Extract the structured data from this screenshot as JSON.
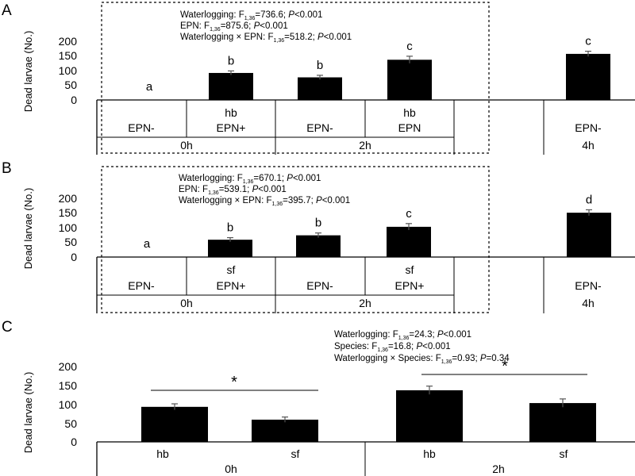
{
  "figure": {
    "panels": [
      {
        "id": "A",
        "ylabel": "Dead larvae (No.)",
        "yticks": [
          "0",
          "50",
          "100",
          "150",
          "200"
        ],
        "stats": [
          {
            "pre": "Waterlogging: F",
            "sub": "1,36",
            "post": "=736.6; ",
            "p": "P",
            "tail": "<0.001"
          },
          {
            "pre": "EPN: F",
            "sub": "1,36",
            "post": "=875.6; ",
            "p": "P",
            "tail": "<0.001"
          },
          {
            "pre": "Waterlogging × EPN: F",
            "sub": "1,36",
            "post": "=518.2; ",
            "p": "P",
            "tail": "<0.001"
          }
        ],
        "row1": [
          "",
          "hb",
          "",
          "hb",
          "",
          ""
        ],
        "row2": [
          "EPN-",
          "EPN+",
          "EPN-",
          "EPN",
          "",
          "EPN-"
        ],
        "row3": [
          "0h",
          "2h",
          "4h"
        ]
      },
      {
        "id": "B",
        "ylabel": "Dead larvae (No.)",
        "yticks": [
          "0",
          "50",
          "100",
          "150",
          "200"
        ],
        "stats": [
          {
            "pre": "Waterlogging: F",
            "sub": "1,36",
            "post": "=670.1; ",
            "p": "P",
            "tail": "<0.001"
          },
          {
            "pre": "EPN: F",
            "sub": "1,36",
            "post": "=539.1; ",
            "p": "P",
            "tail": "<0.001"
          },
          {
            "pre": "Waterlogging × EPN: F",
            "sub": "1,36",
            "post": "=395.7; ",
            "p": "P",
            "tail": "<0.001"
          }
        ],
        "row1": [
          "",
          "sf",
          "",
          "sf",
          "",
          ""
        ],
        "row2": [
          "EPN-",
          "EPN+",
          "EPN-",
          "EPN+",
          "",
          "EPN-"
        ],
        "row3": [
          "0h",
          "2h",
          "4h"
        ]
      },
      {
        "id": "C",
        "ylabel": "Dead larvae (No.)",
        "yticks": [
          "0",
          "50",
          "100",
          "150",
          "200"
        ],
        "stats": [
          {
            "pre": "Waterlogging: F",
            "sub": "1,36",
            "post": "=24.3; ",
            "p": "P",
            "tail": "<0.001"
          },
          {
            "pre": "Species: F",
            "sub": "1,36",
            "post": "=16.8; ",
            "p": "P",
            "tail": "<0.001"
          },
          {
            "pre": "Waterlogging × Species: F",
            "sub": "1,36",
            "post": "=0.93; ",
            "p": "P",
            "tail": "=0.34"
          }
        ],
        "row1": [
          "hb",
          "sf",
          "hb",
          "sf"
        ],
        "row2": [
          "0h",
          "2h"
        ],
        "significance": [
          "*",
          "*"
        ]
      }
    ]
  },
  "chart_data": [
    {
      "type": "bar",
      "panel": "A",
      "ylabel": "Dead larvae (No.)",
      "ylim": [
        0,
        200
      ],
      "yticks": [
        0,
        50,
        100,
        150,
        200
      ],
      "categories": [
        "0h EPN-",
        "0h hb EPN+",
        "2h EPN-",
        "2h hb EPN",
        "4h EPN-"
      ],
      "values": [
        0,
        92,
        77,
        137,
        157
      ],
      "errors": [
        0,
        7,
        7,
        12,
        9
      ],
      "letters": [
        "a",
        "b",
        "b",
        "c",
        "c"
      ]
    },
    {
      "type": "bar",
      "panel": "B",
      "ylabel": "Dead larvae (No.)",
      "ylim": [
        0,
        200
      ],
      "yticks": [
        0,
        50,
        100,
        150,
        200
      ],
      "categories": [
        "0h EPN-",
        "0h sf EPN+",
        "2h EPN-",
        "2h sf EPN+",
        "4h EPN-"
      ],
      "values": [
        0,
        59,
        74,
        103,
        151
      ],
      "errors": [
        0,
        7,
        8,
        11,
        10
      ],
      "letters": [
        "a",
        "b",
        "b",
        "c",
        "d"
      ]
    },
    {
      "type": "bar",
      "panel": "C",
      "ylabel": "Dead larvae (No.)",
      "ylim": [
        0,
        200
      ],
      "yticks": [
        0,
        50,
        100,
        150,
        200
      ],
      "categories": [
        "0h hb",
        "0h sf",
        "2h hb",
        "2h sf"
      ],
      "values": [
        93,
        59,
        137,
        103
      ],
      "errors": [
        8,
        7,
        11,
        11
      ],
      "significance": [
        "*",
        "*"
      ]
    }
  ]
}
